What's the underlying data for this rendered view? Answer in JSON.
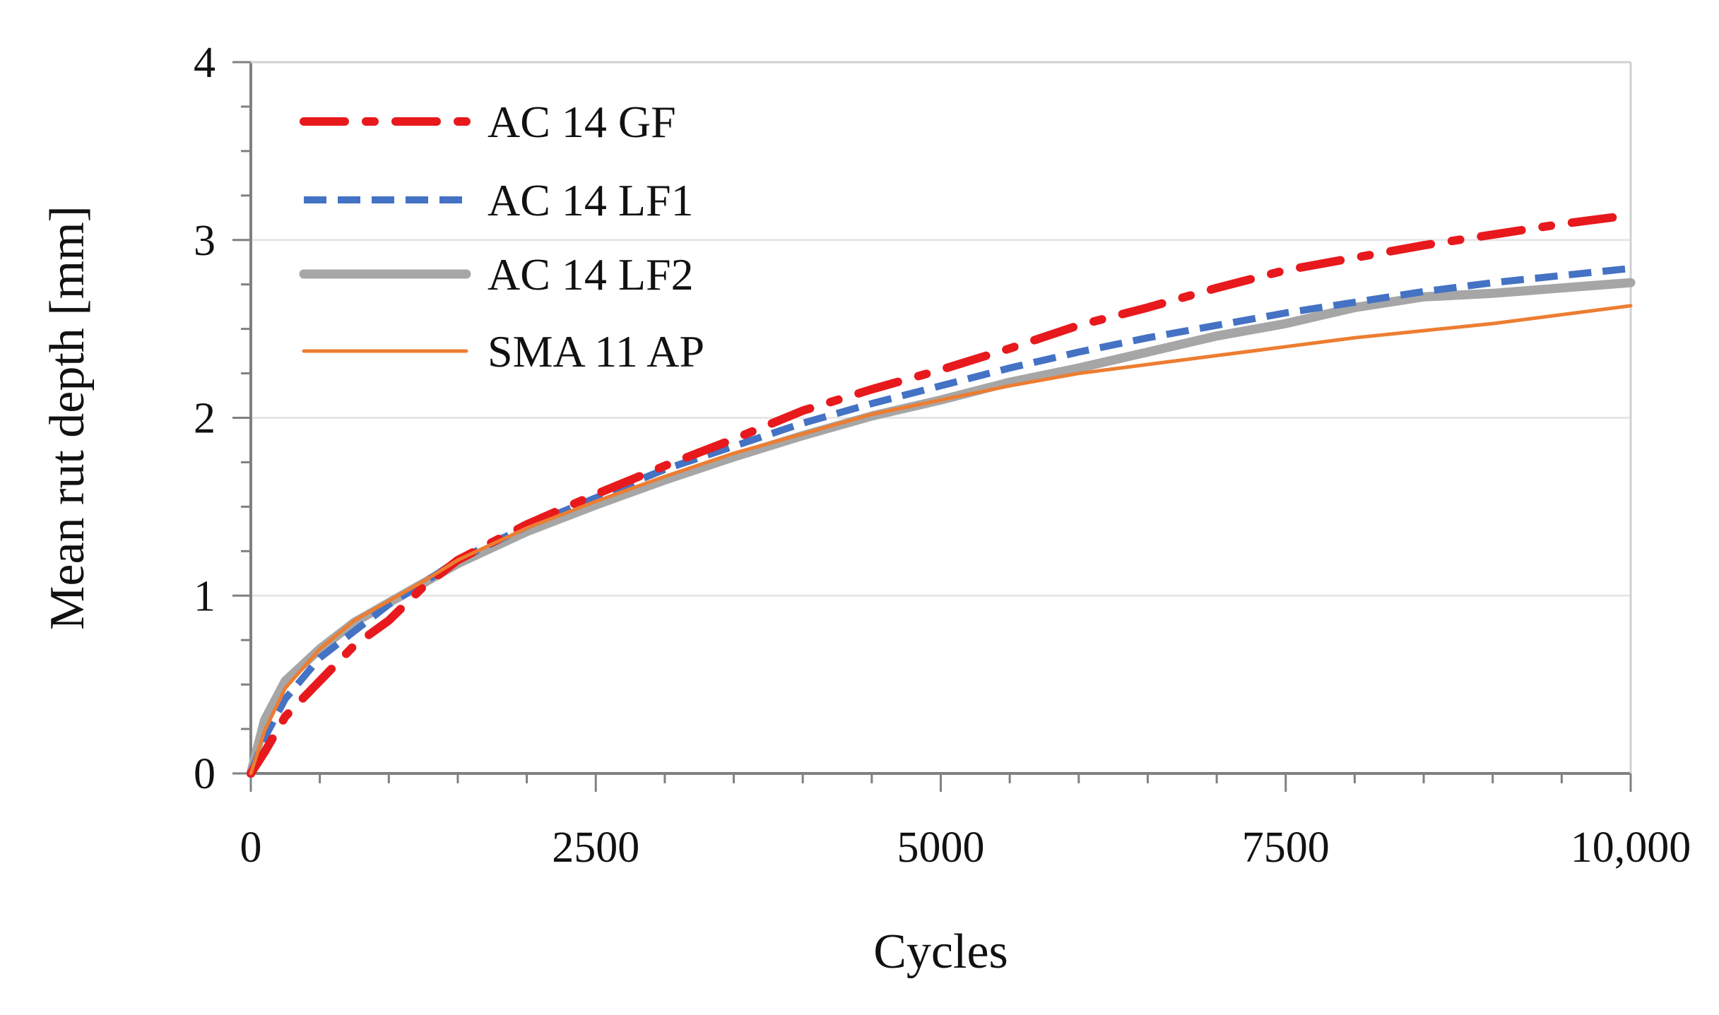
{
  "chart_data": {
    "type": "line",
    "title": "",
    "xlabel": "Cycles",
    "ylabel": "Mean rut depth [mm]",
    "xlim": [
      0,
      10000
    ],
    "ylim": [
      0,
      4
    ],
    "xticks": [
      0,
      2500,
      5000,
      7500,
      10000
    ],
    "xtick_labels": [
      "0",
      "2500",
      "5000",
      "7500",
      "10,000"
    ],
    "yticks": [
      0,
      1,
      2,
      3,
      4
    ],
    "ytick_labels": [
      "0",
      "1",
      "2",
      "3",
      "4"
    ],
    "grid": true,
    "legend_position": "top-left",
    "colors": {
      "ac14gf": "#e8191c",
      "ac14lf1": "#4472c4",
      "ac14lf2": "#a6a6a6",
      "sma11ap": "#ed7d31",
      "axis": "#808080",
      "grid": "#e6e6e6"
    },
    "series": [
      {
        "name": "AC 14 GF",
        "style": "dash-dot",
        "x": [
          0,
          100,
          250,
          500,
          750,
          1000,
          1250,
          1500,
          2000,
          2500,
          3000,
          3500,
          4000,
          4500,
          5000,
          5500,
          6000,
          6500,
          7000,
          7500,
          8000,
          8500,
          9000,
          9500,
          10000
        ],
        "y": [
          0,
          0.12,
          0.32,
          0.52,
          0.72,
          0.86,
          1.05,
          1.2,
          1.4,
          1.57,
          1.73,
          1.88,
          2.04,
          2.16,
          2.27,
          2.39,
          2.52,
          2.62,
          2.73,
          2.83,
          2.9,
          2.97,
          3.03,
          3.09,
          3.14
        ]
      },
      {
        "name": "AC 14 LF1",
        "style": "dashed",
        "x": [
          0,
          100,
          250,
          500,
          750,
          1000,
          1250,
          1500,
          2000,
          2500,
          3000,
          3500,
          4000,
          4500,
          5000,
          5500,
          6000,
          6500,
          7000,
          7500,
          8000,
          8500,
          9000,
          9500,
          10000
        ],
        "y": [
          0,
          0.2,
          0.42,
          0.65,
          0.8,
          0.95,
          1.07,
          1.2,
          1.39,
          1.55,
          1.71,
          1.84,
          1.97,
          2.08,
          2.18,
          2.28,
          2.37,
          2.45,
          2.52,
          2.59,
          2.65,
          2.71,
          2.76,
          2.8,
          2.84
        ]
      },
      {
        "name": "AC 14 LF2",
        "style": "solid",
        "x": [
          0,
          100,
          250,
          500,
          750,
          1000,
          1250,
          1500,
          2000,
          2500,
          3000,
          3500,
          4000,
          4500,
          5000,
          5500,
          6000,
          6500,
          7000,
          7500,
          8000,
          8500,
          9000,
          9500,
          10000
        ],
        "y": [
          0,
          0.3,
          0.52,
          0.7,
          0.85,
          0.96,
          1.07,
          1.18,
          1.36,
          1.51,
          1.65,
          1.78,
          1.9,
          2.01,
          2.1,
          2.2,
          2.28,
          2.37,
          2.46,
          2.53,
          2.62,
          2.68,
          2.7,
          2.73,
          2.76
        ]
      },
      {
        "name": "SMA 11 AP",
        "style": "solid-thin",
        "x": [
          0,
          100,
          250,
          500,
          750,
          1000,
          1250,
          1500,
          2000,
          2500,
          3000,
          3500,
          4000,
          4500,
          5000,
          5500,
          6000,
          6500,
          7000,
          7500,
          8000,
          8500,
          9000,
          9500,
          10000
        ],
        "y": [
          0,
          0.24,
          0.48,
          0.7,
          0.86,
          0.97,
          1.08,
          1.2,
          1.38,
          1.53,
          1.67,
          1.8,
          1.91,
          2.02,
          2.1,
          2.18,
          2.25,
          2.3,
          2.35,
          2.4,
          2.45,
          2.49,
          2.53,
          2.58,
          2.63
        ]
      }
    ]
  }
}
